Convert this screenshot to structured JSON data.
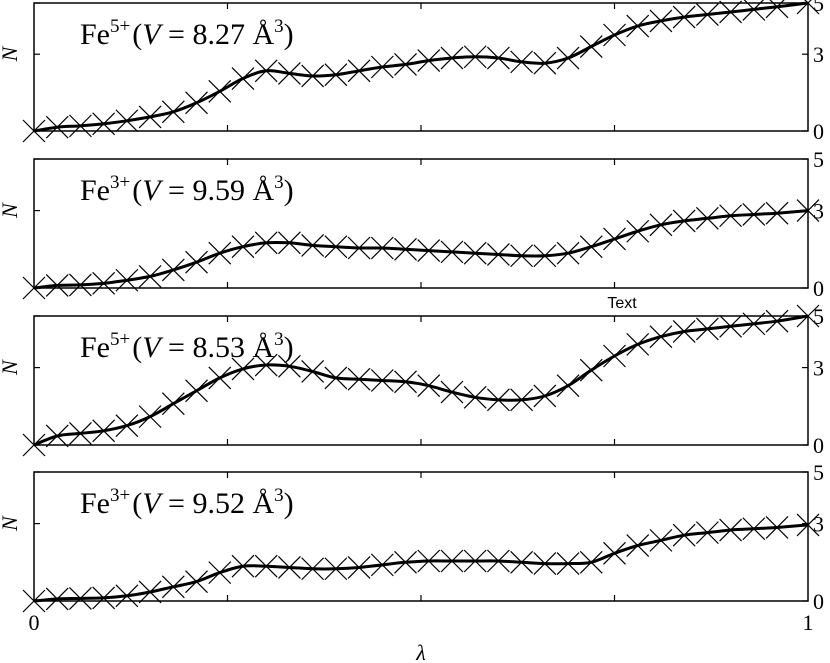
{
  "chart_data": [
    {
      "type": "line",
      "title": "Fe5+ (V = 8.27 Å3)",
      "label": {
        "element": "Fe",
        "charge": "5+",
        "paren_open": "(",
        "var": "V",
        "equals": " = 8.27 Å",
        "exp": "3",
        "paren_close": ")"
      },
      "ylabel": "N",
      "yticks": [
        "0",
        "3",
        "5"
      ],
      "ylim": [
        0,
        5
      ],
      "xlim": [
        0,
        1
      ],
      "x": [
        0,
        0.03,
        0.06,
        0.09,
        0.12,
        0.15,
        0.18,
        0.21,
        0.24,
        0.27,
        0.3,
        0.33,
        0.36,
        0.39,
        0.42,
        0.45,
        0.48,
        0.51,
        0.54,
        0.57,
        0.6,
        0.63,
        0.66,
        0.69,
        0.72,
        0.75,
        0.78,
        0.81,
        0.84,
        0.87,
        0.9,
        0.93,
        0.96,
        1.0
      ],
      "values": [
        0.0,
        0.15,
        0.2,
        0.28,
        0.4,
        0.55,
        0.75,
        1.1,
        1.55,
        2.05,
        2.35,
        2.25,
        2.15,
        2.2,
        2.35,
        2.5,
        2.6,
        2.75,
        2.85,
        2.9,
        2.85,
        2.7,
        2.65,
        2.85,
        3.3,
        3.75,
        4.1,
        4.3,
        4.45,
        4.55,
        4.65,
        4.75,
        4.85,
        5.0
      ]
    },
    {
      "type": "line",
      "title": "Fe3+ (V = 9.59 Å3)",
      "label": {
        "element": "Fe",
        "charge": "3+",
        "paren_open": "(",
        "var": "V",
        "equals": " = 9.59 Å",
        "exp": "3",
        "paren_close": ")"
      },
      "ylabel": "N",
      "yticks": [
        "0",
        "3",
        "5"
      ],
      "ylim": [
        0,
        5
      ],
      "xlim": [
        0,
        1
      ],
      "x": [
        0,
        0.03,
        0.06,
        0.09,
        0.12,
        0.15,
        0.18,
        0.21,
        0.24,
        0.27,
        0.3,
        0.33,
        0.36,
        0.39,
        0.42,
        0.45,
        0.48,
        0.51,
        0.54,
        0.57,
        0.6,
        0.63,
        0.66,
        0.69,
        0.72,
        0.75,
        0.78,
        0.81,
        0.84,
        0.87,
        0.9,
        0.93,
        0.96,
        1.0
      ],
      "values": [
        0.0,
        0.1,
        0.12,
        0.18,
        0.3,
        0.45,
        0.7,
        1.0,
        1.35,
        1.6,
        1.75,
        1.75,
        1.65,
        1.6,
        1.55,
        1.55,
        1.5,
        1.45,
        1.4,
        1.35,
        1.3,
        1.25,
        1.25,
        1.35,
        1.6,
        1.9,
        2.2,
        2.45,
        2.6,
        2.7,
        2.8,
        2.85,
        2.9,
        3.0
      ]
    },
    {
      "type": "line",
      "title": "Fe5+ (V = 8.53 Å3)",
      "label": {
        "element": "Fe",
        "charge": "5+",
        "paren_open": "(",
        "var": "V",
        "equals": " = 8.53 Å",
        "exp": "3",
        "paren_close": ")"
      },
      "ylabel": "N",
      "yticks": [
        "0",
        "3",
        "5"
      ],
      "ylim": [
        0,
        5
      ],
      "xlim": [
        0,
        1
      ],
      "x": [
        0,
        0.03,
        0.06,
        0.09,
        0.12,
        0.15,
        0.18,
        0.21,
        0.24,
        0.27,
        0.3,
        0.33,
        0.36,
        0.39,
        0.42,
        0.45,
        0.48,
        0.51,
        0.54,
        0.57,
        0.6,
        0.63,
        0.66,
        0.69,
        0.72,
        0.75,
        0.78,
        0.81,
        0.84,
        0.87,
        0.9,
        0.93,
        0.96,
        1.0
      ],
      "values": [
        0.0,
        0.35,
        0.45,
        0.55,
        0.75,
        1.1,
        1.6,
        2.1,
        2.6,
        2.95,
        3.1,
        3.05,
        2.85,
        2.6,
        2.55,
        2.5,
        2.45,
        2.3,
        2.05,
        1.85,
        1.75,
        1.75,
        1.9,
        2.3,
        2.9,
        3.45,
        3.9,
        4.2,
        4.4,
        4.5,
        4.6,
        4.7,
        4.8,
        5.0
      ]
    },
    {
      "type": "line",
      "title": "Fe3+(V = 9.52 Å3)",
      "label": {
        "element": "Fe",
        "charge": "3+",
        "paren_open": "(",
        "var": "V",
        "equals": " = 9.52 Å",
        "exp": "3",
        "paren_close": ")"
      },
      "ylabel": "N",
      "yticks": [
        "0",
        "3",
        "5"
      ],
      "ylim": [
        0,
        5
      ],
      "xlim": [
        0,
        1
      ],
      "x": [
        0,
        0.03,
        0.06,
        0.09,
        0.12,
        0.15,
        0.18,
        0.21,
        0.24,
        0.27,
        0.3,
        0.33,
        0.36,
        0.39,
        0.42,
        0.45,
        0.48,
        0.51,
        0.54,
        0.57,
        0.6,
        0.63,
        0.66,
        0.69,
        0.72,
        0.75,
        0.78,
        0.81,
        0.84,
        0.87,
        0.9,
        0.93,
        0.96,
        1.0
      ],
      "values": [
        0.0,
        0.08,
        0.1,
        0.12,
        0.2,
        0.35,
        0.55,
        0.75,
        1.1,
        1.35,
        1.35,
        1.3,
        1.25,
        1.25,
        1.3,
        1.4,
        1.5,
        1.55,
        1.55,
        1.55,
        1.55,
        1.5,
        1.45,
        1.45,
        1.5,
        1.85,
        2.15,
        2.35,
        2.55,
        2.65,
        2.75,
        2.8,
        2.85,
        2.95
      ]
    }
  ],
  "xaxis": {
    "label": "λ",
    "ticks": [
      "0",
      "1"
    ]
  },
  "stray_text": "Text"
}
